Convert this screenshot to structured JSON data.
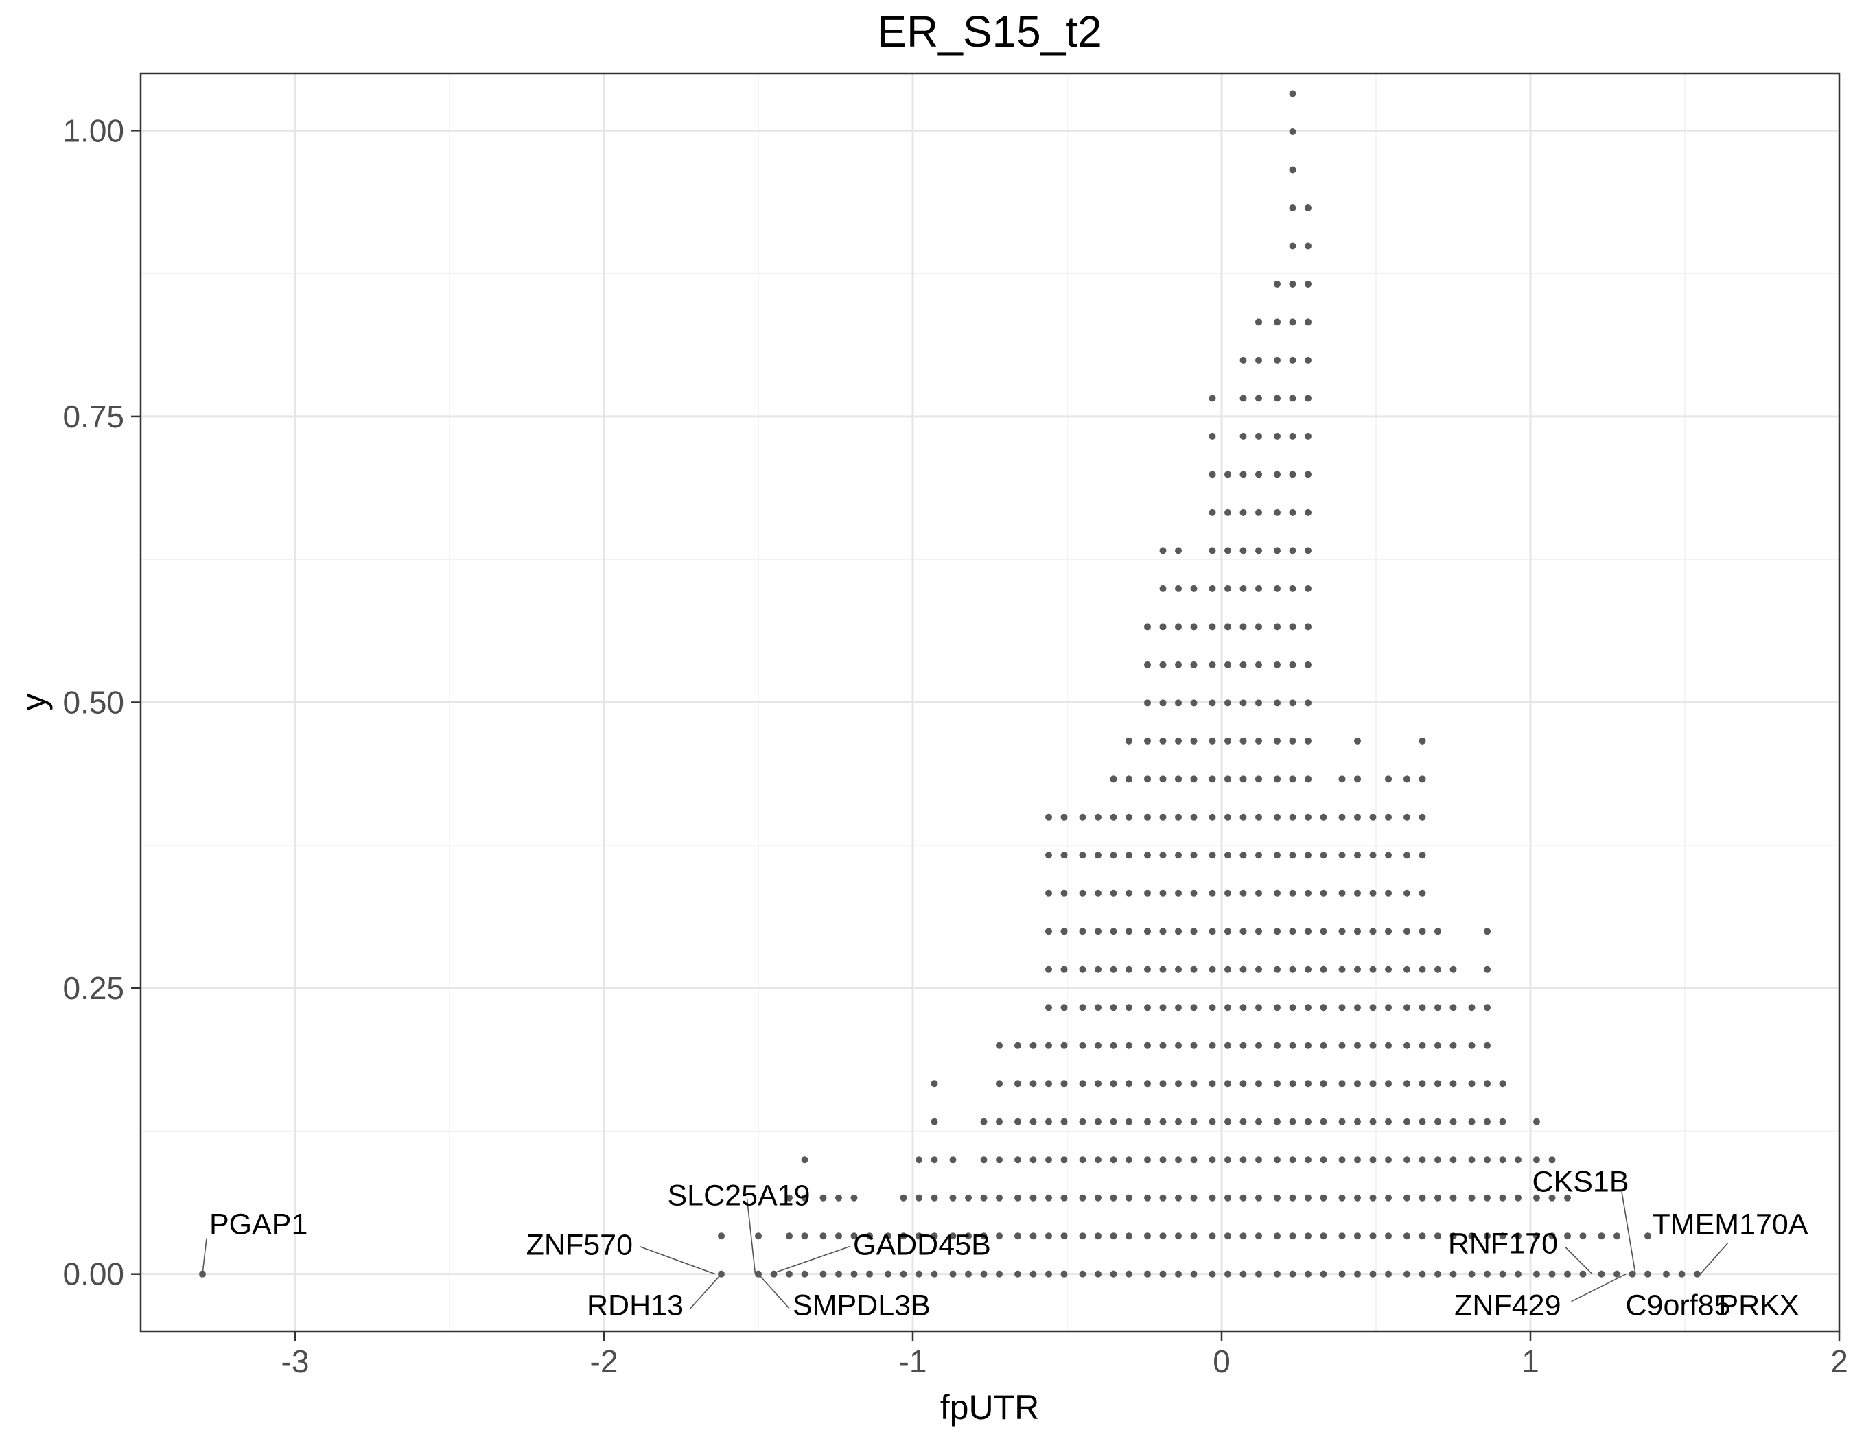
{
  "chart_data": {
    "type": "scatter",
    "title": "ER_S15_t2",
    "xlabel": "fpUTR",
    "ylabel": "y",
    "xlim": [
      -3.5,
      2.0
    ],
    "ylim": [
      -0.05,
      1.05
    ],
    "x_ticks": [
      -3,
      -2,
      -1,
      0,
      1,
      2
    ],
    "x_tick_labels": [
      "-3",
      "-2",
      "-1",
      "0",
      "1",
      "2"
    ],
    "y_ticks": [
      0,
      0.25,
      0.5,
      0.75,
      1.0
    ],
    "y_tick_labels": [
      "0.00",
      "0.25",
      "0.50",
      "0.75",
      "1.00"
    ],
    "grid": true,
    "legend": "none",
    "point_color": "#595959",
    "bin_width": 0.0523,
    "stack_step": 0.0333,
    "stacks": [
      {
        "x": -3.3,
        "count": 1
      },
      {
        "x": -1.62,
        "count": 2
      },
      {
        "x": -1.5,
        "count": 2
      },
      {
        "x": -1.45,
        "count": 1
      },
      {
        "x": -1.4,
        "count": 3
      },
      {
        "x": -1.35,
        "count": 4
      },
      {
        "x": -1.29,
        "count": 3
      },
      {
        "x": -1.24,
        "count": 3
      },
      {
        "x": -1.19,
        "count": 3
      },
      {
        "x": -1.14,
        "count": 2
      },
      {
        "x": -1.08,
        "count": 2
      },
      {
        "x": -1.03,
        "count": 3
      },
      {
        "x": -0.98,
        "count": 4
      },
      {
        "x": -0.93,
        "count": 6
      },
      {
        "x": -0.87,
        "count": 4
      },
      {
        "x": -0.82,
        "count": 3
      },
      {
        "x": -0.77,
        "count": 5
      },
      {
        "x": -0.72,
        "count": 7
      },
      {
        "x": -0.66,
        "count": 7
      },
      {
        "x": -0.61,
        "count": 7
      },
      {
        "x": -0.56,
        "count": 13
      },
      {
        "x": -0.51,
        "count": 13
      },
      {
        "x": -0.45,
        "count": 13
      },
      {
        "x": -0.4,
        "count": 13
      },
      {
        "x": -0.35,
        "count": 14
      },
      {
        "x": -0.3,
        "count": 15
      },
      {
        "x": -0.24,
        "count": 18
      },
      {
        "x": -0.19,
        "count": 20
      },
      {
        "x": -0.14,
        "count": 20
      },
      {
        "x": -0.09,
        "count": 19
      },
      {
        "x": -0.03,
        "count": 24
      },
      {
        "x": 0.02,
        "count": 22
      },
      {
        "x": 0.07,
        "count": 25
      },
      {
        "x": 0.12,
        "count": 26
      },
      {
        "x": 0.18,
        "count": 27
      },
      {
        "x": 0.23,
        "count": 32
      },
      {
        "x": 0.28,
        "count": 29
      },
      {
        "x": 0.33,
        "count": 13
      },
      {
        "x": 0.39,
        "count": 14
      },
      {
        "x": 0.44,
        "count": 15
      },
      {
        "x": 0.49,
        "count": 13
      },
      {
        "x": 0.54,
        "count": 14
      },
      {
        "x": 0.6,
        "count": 14
      },
      {
        "x": 0.65,
        "count": 15
      },
      {
        "x": 0.7,
        "count": 10
      },
      {
        "x": 0.75,
        "count": 9
      },
      {
        "x": 0.81,
        "count": 8
      },
      {
        "x": 0.86,
        "count": 10
      },
      {
        "x": 0.91,
        "count": 6
      },
      {
        "x": 0.96,
        "count": 4
      },
      {
        "x": 1.02,
        "count": 5
      },
      {
        "x": 1.07,
        "count": 4
      },
      {
        "x": 1.12,
        "count": 3
      },
      {
        "x": 1.17,
        "count": 2
      },
      {
        "x": 1.23,
        "count": 2
      },
      {
        "x": 1.28,
        "count": 2
      },
      {
        "x": 1.33,
        "count": 1
      },
      {
        "x": 1.38,
        "count": 2
      },
      {
        "x": 1.44,
        "count": 1
      },
      {
        "x": 1.49,
        "count": 1
      },
      {
        "x": 1.54,
        "count": 1
      }
    ],
    "annotations": [
      {
        "label": "PGAP1",
        "x": -3.3,
        "y": 0.0
      },
      {
        "label": "ZNF570",
        "x": -1.64,
        "y": 0.0
      },
      {
        "label": "RDH13",
        "x": -1.62,
        "y": 0.0
      },
      {
        "label": "SLC25A19",
        "x": -1.51,
        "y": 0.0
      },
      {
        "label": "SMPDL3B",
        "x": -1.5,
        "y": 0.0
      },
      {
        "label": "GADD45B",
        "x": -1.46,
        "y": 0.0
      },
      {
        "label": "CKS1B",
        "x": 1.34,
        "y": 0.0
      },
      {
        "label": "RNF170",
        "x": 1.2,
        "y": 0.0
      },
      {
        "label": "ZNF429",
        "x": 1.31,
        "y": 0.0
      },
      {
        "label": "TMEM170A",
        "x": 1.55,
        "y": 0.0
      },
      {
        "label": "C9orf85",
        "x": 1.37,
        "y": 0.0
      },
      {
        "label": "PRKX",
        "x": 1.74,
        "y": 0.0
      }
    ]
  }
}
